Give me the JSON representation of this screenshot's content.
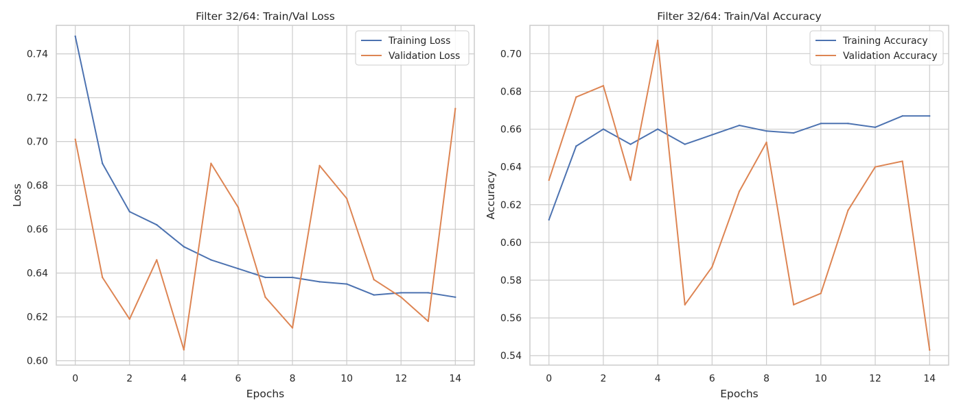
{
  "colors": {
    "training": "#4c72b0",
    "validation": "#dd8452",
    "grid": "#cccccc",
    "background": "#ffffff"
  },
  "chart_data": [
    {
      "type": "line",
      "title": "Filter 32/64:  Train/Val Loss",
      "xlabel": "Epochs",
      "ylabel": "Loss",
      "x": [
        0,
        1,
        2,
        3,
        4,
        5,
        6,
        7,
        8,
        9,
        10,
        11,
        12,
        13,
        14
      ],
      "xlim": [
        -0.7,
        14.7
      ],
      "ylim": [
        0.598,
        0.753
      ],
      "xticks": [
        0,
        2,
        4,
        6,
        8,
        10,
        12,
        14
      ],
      "yticks": [
        0.6,
        0.62,
        0.64,
        0.66,
        0.68,
        0.7,
        0.72,
        0.74
      ],
      "ytick_decimals": 2,
      "grid": true,
      "legend_placement": "upper right",
      "series": [
        {
          "name": "Training Loss",
          "color_key": "training",
          "values": [
            0.748,
            0.69,
            0.668,
            0.662,
            0.652,
            0.646,
            0.642,
            0.638,
            0.638,
            0.636,
            0.635,
            0.63,
            0.631,
            0.631,
            0.629
          ]
        },
        {
          "name": "Validation Loss",
          "color_key": "validation",
          "values": [
            0.701,
            0.638,
            0.619,
            0.646,
            0.605,
            0.69,
            0.67,
            0.629,
            0.615,
            0.689,
            0.674,
            0.637,
            0.629,
            0.618,
            0.715
          ]
        }
      ]
    },
    {
      "type": "line",
      "title": "Filter 32/64:  Train/Val Accuracy",
      "xlabel": "Epochs",
      "ylabel": "Accuracy",
      "x": [
        0,
        1,
        2,
        3,
        4,
        5,
        6,
        7,
        8,
        9,
        10,
        11,
        12,
        13,
        14
      ],
      "xlim": [
        -0.7,
        14.7
      ],
      "ylim": [
        0.535,
        0.715
      ],
      "xticks": [
        0,
        2,
        4,
        6,
        8,
        10,
        12,
        14
      ],
      "yticks": [
        0.54,
        0.56,
        0.58,
        0.6,
        0.62,
        0.64,
        0.66,
        0.68,
        0.7
      ],
      "ytick_decimals": 2,
      "grid": true,
      "legend_placement": "upper right",
      "series": [
        {
          "name": "Training Accuracy",
          "color_key": "training",
          "values": [
            0.612,
            0.651,
            0.66,
            0.652,
            0.66,
            0.652,
            0.657,
            0.662,
            0.659,
            0.658,
            0.663,
            0.663,
            0.661,
            0.667,
            0.667
          ]
        },
        {
          "name": "Validation Accuracy",
          "color_key": "validation",
          "values": [
            0.633,
            0.677,
            0.683,
            0.633,
            0.707,
            0.567,
            0.587,
            0.627,
            0.653,
            0.567,
            0.573,
            0.617,
            0.64,
            0.643,
            0.543
          ]
        }
      ]
    }
  ]
}
